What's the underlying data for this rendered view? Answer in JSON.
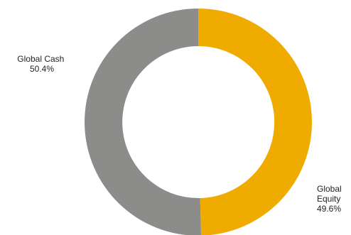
{
  "chart_data": {
    "type": "pie",
    "style": "donut",
    "title": "",
    "start": "top",
    "direction": "clockwise",
    "legend": "none",
    "slices": [
      {
        "name": "Global Equity",
        "name_lines": [
          "Global",
          "Equity"
        ],
        "value": 49.6,
        "value_label": "49.6%",
        "color": "#f0ab00"
      },
      {
        "name": "Global Cash",
        "name_lines": [
          "Global Cash"
        ],
        "value": 50.4,
        "value_label": "50.4%",
        "color": "#8c8d8b"
      }
    ]
  }
}
